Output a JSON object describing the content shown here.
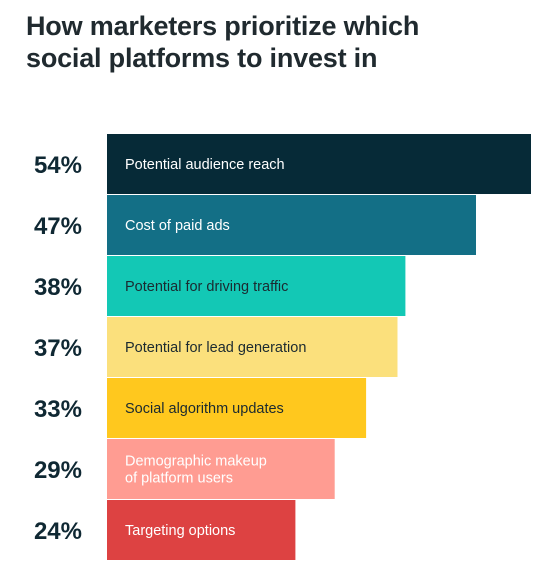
{
  "title": {
    "line1": "How marketers prioritize which",
    "line2": "social platforms to invest in"
  },
  "colors": {
    "title": "#202a2f",
    "percent_text": "#0f2833"
  },
  "chart_data": {
    "type": "bar",
    "orientation": "horizontal",
    "title": "How marketers prioritize which social platforms to invest in",
    "value_unit": "%",
    "xlim": [
      0,
      54
    ],
    "grid": false,
    "legend": "none",
    "categories": [
      [
        "Potential audience reach"
      ],
      [
        "Cost of paid ads"
      ],
      [
        "Potential for driving traffic"
      ],
      [
        "Potential for lead generation"
      ],
      [
        "Social algorithm updates"
      ],
      [
        "Demographic makeup",
        "of platform users"
      ],
      [
        "Targeting options"
      ]
    ],
    "values": [
      54,
      47,
      38,
      37,
      33,
      29,
      24
    ],
    "value_labels": [
      "54%",
      "47%",
      "38%",
      "37%",
      "33%",
      "29%",
      "24%"
    ],
    "bar_colors": [
      "#062a37",
      "#136f86",
      "#13c8b5",
      "#fbe07c",
      "#ffc81e",
      "#ff9c92",
      "#dd4242"
    ],
    "label_colors": [
      "#ffffff",
      "#ffffff",
      "#1b2a30",
      "#1b2a30",
      "#1b2a30",
      "#ffffff",
      "#ffffff"
    ]
  }
}
